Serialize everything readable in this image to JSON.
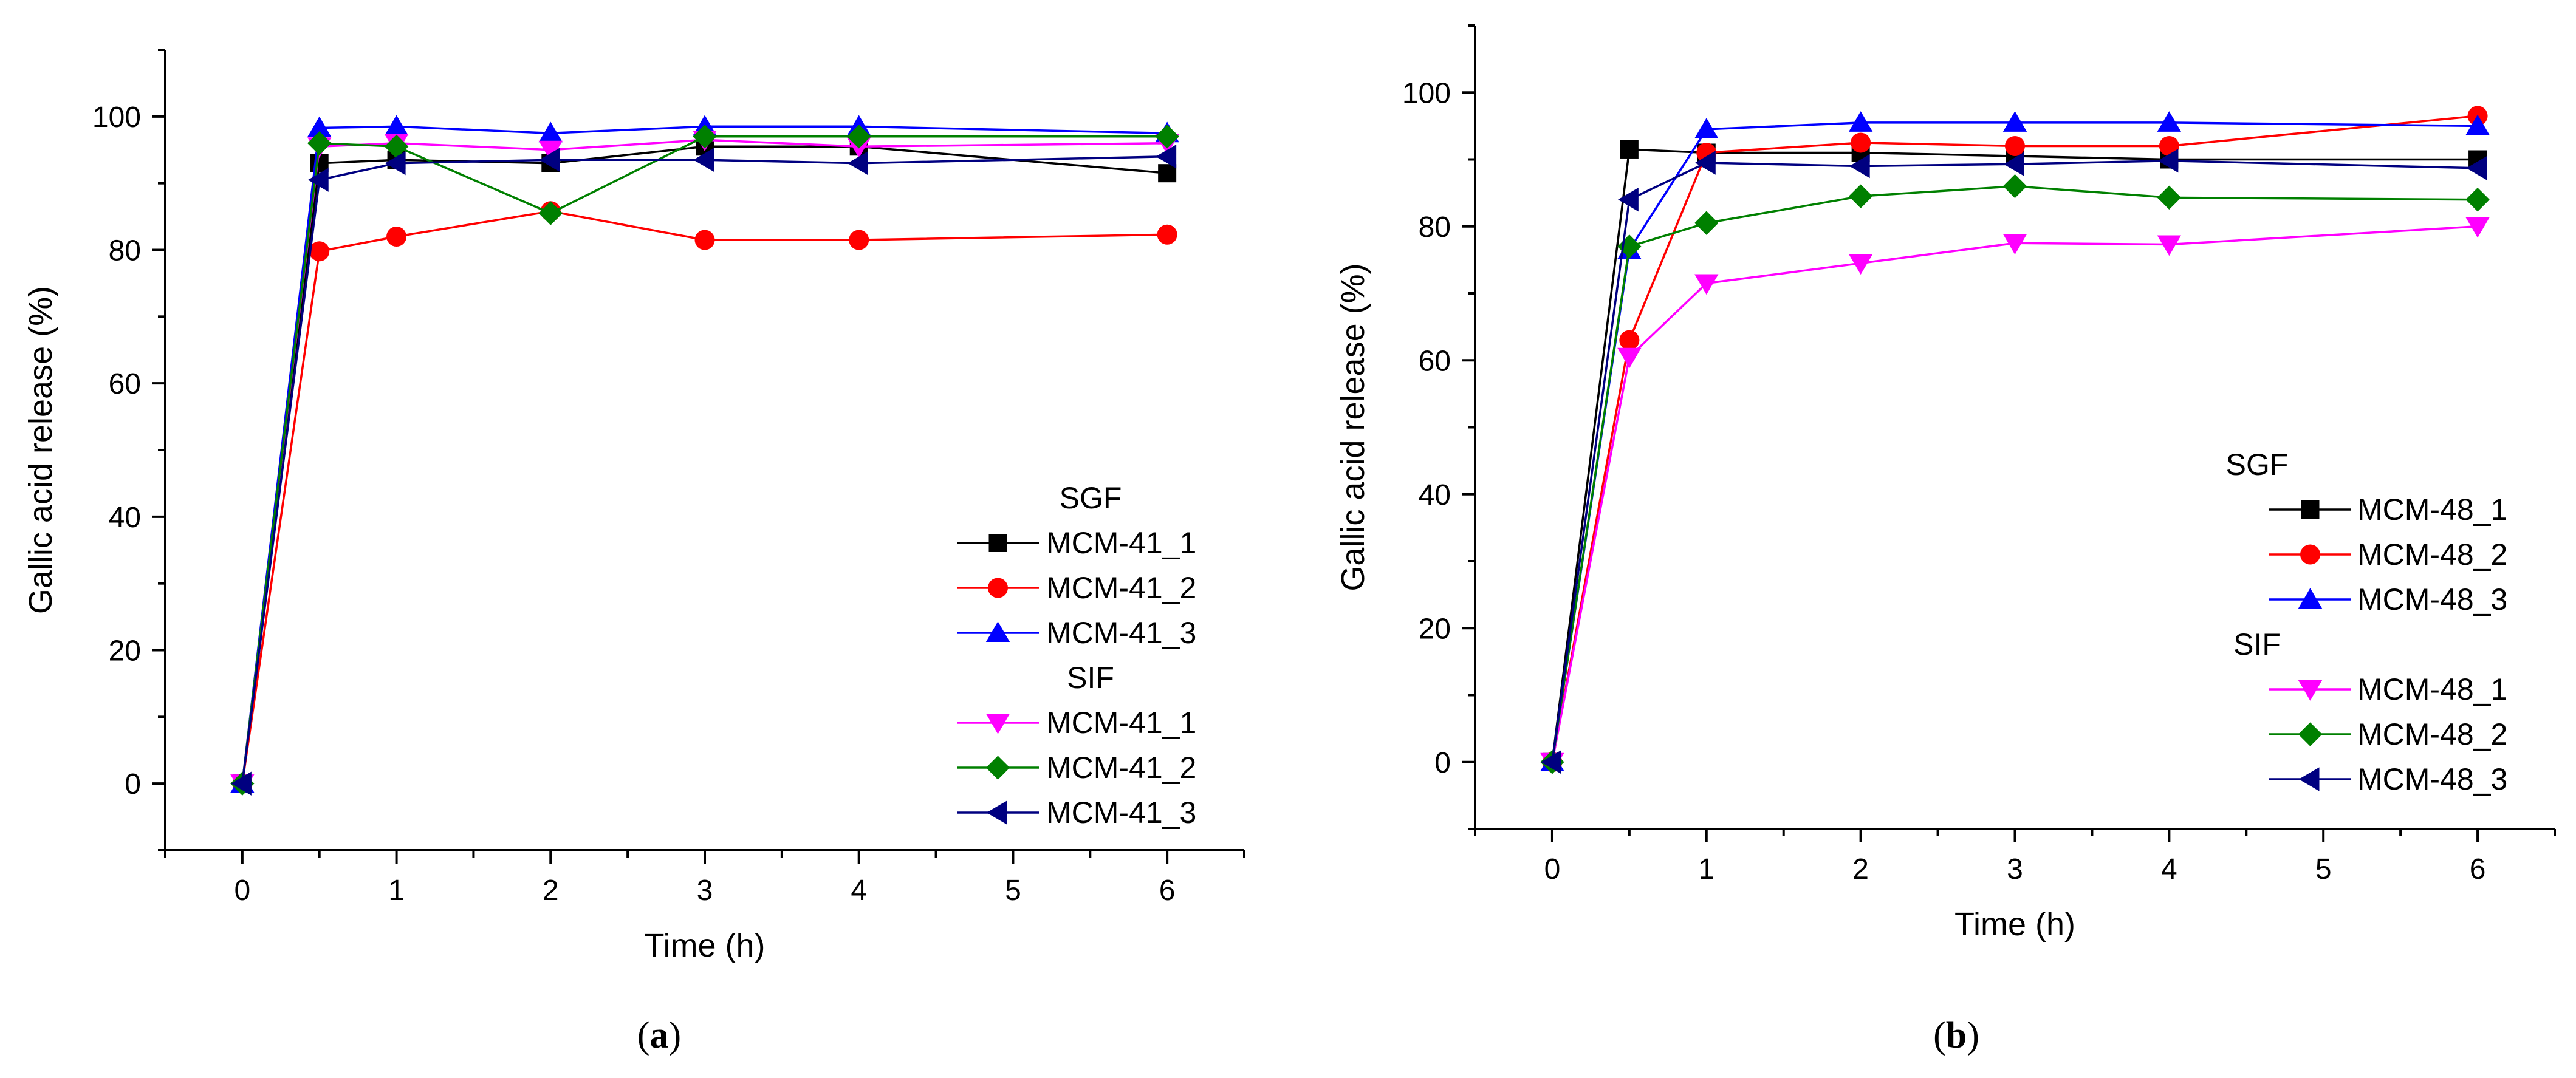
{
  "colors": {
    "MCM-41_1": "#000000",
    "MCM-41_2": "#ff0000",
    "MCM-41_3": "#0000ff",
    "MCM-41_1s": "#ff00ff",
    "MCM-41_2s": "#008000",
    "MCM-41_3s": "#000080"
  },
  "chart_data": [
    {
      "type": "line",
      "panel_label": "(a)",
      "panel_letter": "a",
      "xlabel": "Time (h)",
      "ylabel": "Gallic acid release (%)",
      "xlim": [
        -0.5,
        6.5
      ],
      "ylim": [
        -10,
        110
      ],
      "xticks": [
        0,
        1,
        2,
        3,
        4,
        5,
        6
      ],
      "yticks": [
        0,
        20,
        40,
        60,
        80,
        100
      ],
      "x": [
        0,
        0.5,
        1,
        2,
        3,
        4,
        6
      ],
      "legend_position": "lower-right",
      "legend_groups": [
        {
          "title": "SGF",
          "series": [
            0,
            1,
            2
          ]
        },
        {
          "title": "SIF",
          "series": [
            3,
            4,
            5
          ]
        }
      ],
      "series": [
        {
          "name": "MCM-41_1",
          "group": "SGF",
          "color": "#000000",
          "marker": "square",
          "values": [
            0,
            93,
            93.5,
            93,
            95.5,
            95.5,
            91.5
          ]
        },
        {
          "name": "MCM-41_2",
          "group": "SGF",
          "color": "#ff0000",
          "marker": "circle",
          "values": [
            0,
            79.8,
            82,
            85.8,
            81.5,
            81.5,
            82.3
          ]
        },
        {
          "name": "MCM-41_3",
          "group": "SGF",
          "color": "#0000ff",
          "marker": "triangle-up",
          "values": [
            0,
            98.3,
            98.5,
            97.5,
            98.5,
            98.5,
            97.5
          ]
        },
        {
          "name": "MCM-41_1",
          "group": "SIF",
          "color": "#ff00ff",
          "marker": "triangle-down",
          "values": [
            0,
            95.5,
            96,
            95,
            96.5,
            95.5,
            96
          ]
        },
        {
          "name": "MCM-41_2",
          "group": "SIF",
          "color": "#008000",
          "marker": "diamond",
          "values": [
            0,
            96,
            95.5,
            85.5,
            97,
            97,
            97
          ]
        },
        {
          "name": "MCM-41_3",
          "group": "SIF",
          "color": "#000080",
          "marker": "triangle-left",
          "values": [
            0,
            90.5,
            93,
            93.5,
            93.5,
            93,
            94
          ]
        }
      ]
    },
    {
      "type": "line",
      "panel_label": "(b)",
      "panel_letter": "b",
      "xlabel": "Time (h)",
      "ylabel": "Gallic acid release (%)",
      "xlim": [
        -0.5,
        6.5
      ],
      "ylim": [
        -10,
        110
      ],
      "xticks": [
        0,
        1,
        2,
        3,
        4,
        5,
        6
      ],
      "yticks": [
        0,
        20,
        40,
        60,
        80,
        100
      ],
      "x": [
        0,
        0.5,
        1,
        2,
        3,
        4,
        6
      ],
      "legend_position": "lower-right",
      "legend_groups": [
        {
          "title": "SGF",
          "series": [
            0,
            1,
            2
          ]
        },
        {
          "title": "SIF",
          "series": [
            3,
            4,
            5
          ]
        }
      ],
      "series": [
        {
          "name": "MCM-48_1",
          "group": "SGF",
          "color": "#000000",
          "marker": "square",
          "values": [
            0,
            91.5,
            91,
            91,
            90.5,
            90,
            90
          ]
        },
        {
          "name": "MCM-48_2",
          "group": "SGF",
          "color": "#ff0000",
          "marker": "circle",
          "values": [
            0,
            63,
            91,
            92.5,
            92,
            92,
            96.5
          ]
        },
        {
          "name": "MCM-48_3",
          "group": "SGF",
          "color": "#0000ff",
          "marker": "triangle-up",
          "values": [
            0,
            76.5,
            94.5,
            95.5,
            95.5,
            95.5,
            95
          ]
        },
        {
          "name": "MCM-48_1",
          "group": "SIF",
          "color": "#ff00ff",
          "marker": "triangle-down",
          "values": [
            0,
            60.5,
            71.5,
            74.5,
            77.5,
            77.3,
            80
          ]
        },
        {
          "name": "MCM-48_2",
          "group": "SIF",
          "color": "#008000",
          "marker": "diamond",
          "values": [
            0,
            77,
            80.5,
            84.5,
            86,
            84.3,
            84
          ]
        },
        {
          "name": "MCM-48_3",
          "group": "SIF",
          "color": "#000080",
          "marker": "triangle-left",
          "values": [
            0,
            84,
            89.5,
            89,
            89.3,
            89.8,
            88.7
          ]
        }
      ]
    }
  ]
}
